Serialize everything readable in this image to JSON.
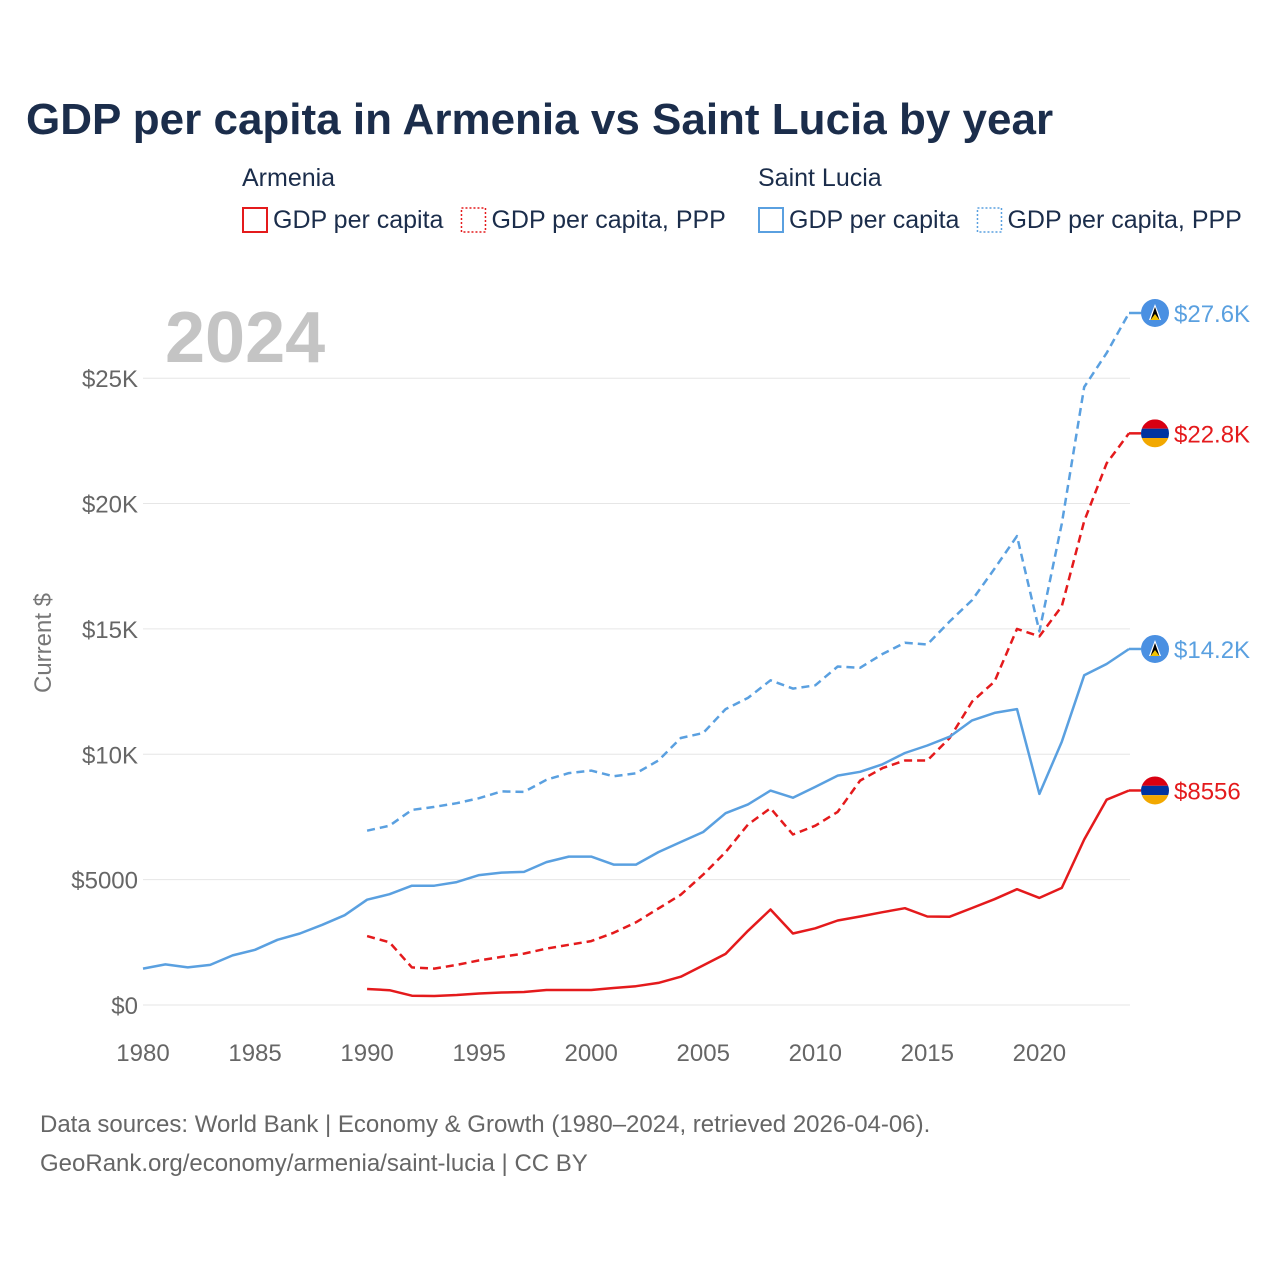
{
  "chart_data": {
    "type": "line",
    "title": "GDP per capita in Armenia vs Saint Lucia by year",
    "ylabel": "Current $",
    "xlabel": "",
    "xlim": [
      1980,
      2024
    ],
    "ylim": [
      0,
      27600
    ],
    "x_ticks": [
      1980,
      1985,
      1990,
      1995,
      2000,
      2005,
      2010,
      2015,
      2020
    ],
    "y_ticks": [
      {
        "value": 0,
        "label": "$0"
      },
      {
        "value": 5000,
        "label": "$5000"
      },
      {
        "value": 10000,
        "label": "$10K"
      },
      {
        "value": 15000,
        "label": "$15K"
      },
      {
        "value": 20000,
        "label": "$20K"
      },
      {
        "value": 25000,
        "label": "$25K"
      }
    ],
    "current_year": "2024",
    "legend": {
      "groups": [
        {
          "country": "Armenia",
          "color": "#e41a1c",
          "items": [
            {
              "label": "GDP per capita",
              "style": "solid"
            },
            {
              "label": "GDP per capita, PPP",
              "style": "dotted"
            }
          ]
        },
        {
          "country": "Saint Lucia",
          "color": "#5aa0e0",
          "items": [
            {
              "label": "GDP per capita",
              "style": "solid"
            },
            {
              "label": "GDP per capita, PPP",
              "style": "dotted"
            }
          ]
        }
      ]
    },
    "series": [
      {
        "name": "Armenia GDP per capita",
        "country": "Armenia",
        "color": "#e41a1c",
        "dash": false,
        "flag": "armenia-flag",
        "end_label": "$8556",
        "x": [
          1990,
          1991,
          1992,
          1993,
          1994,
          1995,
          1996,
          1997,
          1998,
          1999,
          2000,
          2001,
          2002,
          2003,
          2004,
          2005,
          2006,
          2007,
          2008,
          2009,
          2010,
          2011,
          2012,
          2013,
          2014,
          2015,
          2016,
          2017,
          2018,
          2019,
          2020,
          2021,
          2022,
          2023,
          2024
        ],
        "values": [
          640,
          590,
          370,
          360,
          400,
          460,
          500,
          520,
          600,
          600,
          600,
          680,
          750,
          880,
          1130,
          1580,
          2040,
          2960,
          3810,
          2850,
          3060,
          3370,
          3530,
          3700,
          3860,
          3530,
          3520,
          3870,
          4220,
          4620,
          4270,
          4670,
          6600,
          8190,
          8556
        ]
      },
      {
        "name": "Armenia GDP per capita, PPP",
        "country": "Armenia",
        "color": "#e41a1c",
        "dash": true,
        "flag": "armenia-flag",
        "end_label": "$22.8K",
        "x": [
          1990,
          1991,
          1992,
          1993,
          1994,
          1995,
          1996,
          1997,
          1998,
          1999,
          2000,
          2001,
          2002,
          2003,
          2004,
          2005,
          2006,
          2007,
          2008,
          2009,
          2010,
          2011,
          2012,
          2013,
          2014,
          2015,
          2016,
          2017,
          2018,
          2019,
          2020,
          2021,
          2022,
          2023,
          2024
        ],
        "values": [
          2750,
          2500,
          1500,
          1450,
          1600,
          1780,
          1920,
          2050,
          2250,
          2400,
          2550,
          2880,
          3300,
          3850,
          4400,
          5200,
          6100,
          7200,
          7850,
          6800,
          7150,
          7700,
          8950,
          9450,
          9750,
          9750,
          10650,
          12100,
          12900,
          15000,
          14700,
          15900,
          19300,
          21600,
          22800
        ]
      },
      {
        "name": "Saint Lucia GDP per capita",
        "country": "Saint Lucia",
        "color": "#5aa0e0",
        "dash": false,
        "flag": "saint-lucia-flag",
        "end_label": "$14.2K",
        "x": [
          1980,
          1981,
          1982,
          1983,
          1984,
          1985,
          1986,
          1987,
          1988,
          1989,
          1990,
          1991,
          1992,
          1993,
          1994,
          1995,
          1996,
          1997,
          1998,
          1999,
          2000,
          2001,
          2002,
          2003,
          2004,
          2005,
          2006,
          2007,
          2008,
          2009,
          2010,
          2011,
          2012,
          2013,
          2014,
          2015,
          2016,
          2017,
          2018,
          2019,
          2020,
          2021,
          2022,
          2023,
          2024
        ],
        "values": [
          1450,
          1620,
          1500,
          1600,
          1980,
          2200,
          2600,
          2850,
          3200,
          3580,
          4200,
          4420,
          4760,
          4760,
          4900,
          5180,
          5280,
          5310,
          5700,
          5920,
          5920,
          5600,
          5600,
          6100,
          6500,
          6900,
          7650,
          8000,
          8550,
          8270,
          8700,
          9150,
          9300,
          9600,
          10050,
          10350,
          10700,
          11350,
          11650,
          11800,
          8420,
          10500,
          13150,
          13600,
          14200
        ]
      },
      {
        "name": "Saint Lucia GDP per capita, PPP",
        "country": "Saint Lucia",
        "color": "#5aa0e0",
        "dash": true,
        "flag": "saint-lucia-flag",
        "end_label": "$27.6K",
        "x": [
          1990,
          1991,
          1992,
          1993,
          1994,
          1995,
          1996,
          1997,
          1998,
          1999,
          2000,
          2001,
          2002,
          2003,
          2004,
          2005,
          2006,
          2007,
          2008,
          2009,
          2010,
          2011,
          2012,
          2013,
          2014,
          2015,
          2016,
          2017,
          2018,
          2019,
          2020,
          2021,
          2022,
          2023,
          2024
        ],
        "values": [
          6950,
          7150,
          7780,
          7900,
          8050,
          8250,
          8520,
          8500,
          8980,
          9250,
          9350,
          9120,
          9240,
          9750,
          10650,
          10850,
          11800,
          12250,
          12950,
          12620,
          12750,
          13500,
          13450,
          14000,
          14450,
          14380,
          15300,
          16150,
          17400,
          18700,
          14900,
          19200,
          24650,
          26000,
          27600
        ]
      }
    ],
    "source_lines": [
      "Data sources: World Bank | Economy & Growth (1980–2024, retrieved 2026-04-06).",
      "GeoRank.org/economy/armenia/saint-lucia | CC BY"
    ]
  }
}
